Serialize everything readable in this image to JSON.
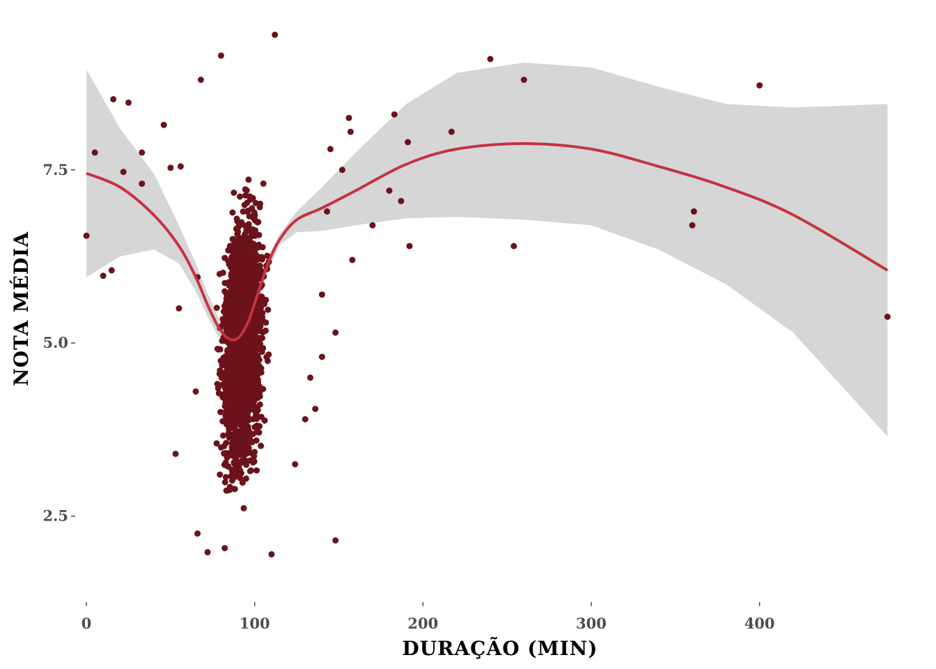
{
  "chart_data": {
    "type": "scatter",
    "title": "",
    "xlabel": "DURAÇÃO (MIN)",
    "ylabel": "NOTA MÉDIA",
    "xlim": [
      -5,
      485
    ],
    "ylim": [
      1.3,
      9.55
    ],
    "xticks": [
      0,
      100,
      200,
      300,
      400
    ],
    "xtick_labels": [
      "0",
      "100",
      "200",
      "300",
      "400"
    ],
    "yticks": [
      2.5,
      5.0,
      7.5
    ],
    "ytick_labels": [
      "2.5",
      "5.0",
      "7.5"
    ],
    "grid": false,
    "legend": "none",
    "colors": {
      "points": "#6b121b",
      "trend": "#c4343f",
      "band": "#d6d6d6",
      "tick": "#4d4d4d"
    },
    "cluster": {
      "description_note": "",
      "x_center": 93,
      "x_sd": 9,
      "y_center": 5.0,
      "y_sd": 1.35,
      "y_min": 1.7,
      "y_max": 9.4,
      "count": 2400
    },
    "points": [
      [
        0,
        6.55
      ],
      [
        5,
        7.75
      ],
      [
        10,
        5.97
      ],
      [
        15,
        6.05
      ],
      [
        16,
        8.52
      ],
      [
        22,
        7.47
      ],
      [
        25,
        8.47
      ],
      [
        33,
        7.75
      ],
      [
        33,
        7.3
      ],
      [
        46,
        8.15
      ],
      [
        50,
        7.53
      ],
      [
        53,
        3.4
      ],
      [
        55,
        5.5
      ],
      [
        56,
        7.55
      ],
      [
        65,
        4.3
      ],
      [
        66,
        2.25
      ],
      [
        66,
        5.95
      ],
      [
        68,
        8.8
      ],
      [
        72,
        1.98
      ],
      [
        80,
        9.15
      ],
      [
        110,
        1.95
      ],
      [
        112,
        9.45
      ],
      [
        124,
        3.25
      ],
      [
        130,
        3.9
      ],
      [
        133,
        4.5
      ],
      [
        136,
        4.05
      ],
      [
        140,
        4.8
      ],
      [
        140,
        5.7
      ],
      [
        143,
        6.9
      ],
      [
        145,
        7.8
      ],
      [
        148,
        2.15
      ],
      [
        148,
        5.15
      ],
      [
        152,
        7.5
      ],
      [
        156,
        8.25
      ],
      [
        157,
        8.05
      ],
      [
        158,
        6.2
      ],
      [
        170,
        6.7
      ],
      [
        180,
        7.2
      ],
      [
        183,
        8.3
      ],
      [
        187,
        7.05
      ],
      [
        191,
        7.9
      ],
      [
        192,
        6.4
      ],
      [
        217,
        8.05
      ],
      [
        240,
        9.1
      ],
      [
        254,
        6.4
      ],
      [
        260,
        8.8
      ],
      [
        360,
        6.7
      ],
      [
        361,
        6.9
      ],
      [
        400,
        8.72
      ],
      [
        476,
        5.38
      ]
    ],
    "trend": {
      "x": [
        0,
        20,
        40,
        55,
        65,
        72,
        78,
        84,
        90,
        96,
        102,
        108,
        115,
        125,
        140,
        160,
        190,
        220,
        260,
        300,
        340,
        380,
        420,
        476
      ],
      "y": [
        7.45,
        7.25,
        6.85,
        6.4,
        5.95,
        5.55,
        5.25,
        5.07,
        5.07,
        5.3,
        5.72,
        6.15,
        6.5,
        6.78,
        6.95,
        7.2,
        7.58,
        7.8,
        7.88,
        7.8,
        7.55,
        7.25,
        6.85,
        6.05
      ],
      "lower": [
        5.95,
        6.25,
        6.35,
        6.15,
        5.75,
        5.38,
        5.1,
        4.97,
        4.97,
        5.18,
        5.6,
        6.05,
        6.42,
        6.6,
        6.62,
        6.7,
        6.8,
        6.82,
        6.78,
        6.7,
        6.35,
        5.85,
        5.15,
        3.65
      ],
      "upper": [
        8.95,
        8.1,
        7.45,
        6.7,
        6.15,
        5.72,
        5.4,
        5.17,
        5.17,
        5.42,
        5.85,
        6.25,
        6.58,
        6.9,
        7.25,
        7.75,
        8.45,
        8.9,
        9.05,
        8.98,
        8.7,
        8.45,
        8.4,
        8.45
      ]
    }
  }
}
